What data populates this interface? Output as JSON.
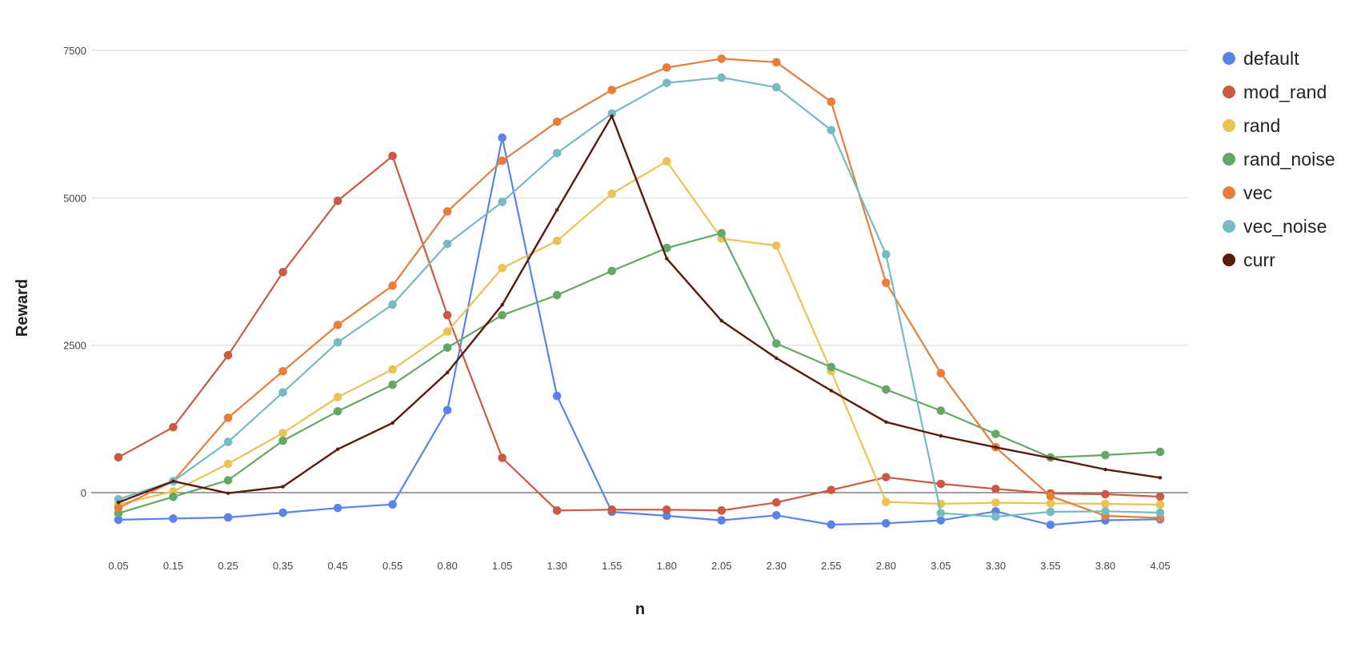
{
  "chart_data": {
    "type": "line",
    "title": "",
    "xlabel": "n",
    "ylabel": "Reward",
    "ylim": [
      -750,
      7800
    ],
    "yticks": [
      0,
      2500,
      5000,
      7500
    ],
    "grid": true,
    "legend_position": "right",
    "categories": [
      "0.05",
      "0.15",
      "0.25",
      "0.35",
      "0.45",
      "0.55",
      "0.80",
      "1.05",
      "1.30",
      "1.55",
      "1.80",
      "2.05",
      "2.30",
      "2.55",
      "2.80",
      "3.05",
      "3.30",
      "3.55",
      "3.80",
      "4.05"
    ],
    "series": [
      {
        "name": "default",
        "color": "#5B84E8",
        "marker": "circle",
        "values": [
          -460,
          -440,
          -420,
          -340,
          -260,
          -200,
          1400,
          6020,
          1640,
          -325,
          -393,
          -470,
          -384,
          -542,
          -520,
          -470,
          -317,
          -546,
          -470,
          -452
        ]
      },
      {
        "name": "mod_rand",
        "color": "#CC5944",
        "marker": "circle",
        "values": [
          600,
          1110,
          2330,
          3740,
          4950,
          5710,
          3010,
          590,
          -303,
          -289,
          -289,
          -303,
          -167,
          45,
          262,
          149,
          64,
          -14,
          -27,
          -68
        ]
      },
      {
        "name": "rand",
        "color": "#EDC254",
        "marker": "circle",
        "values": [
          -200,
          20,
          490,
          1010,
          1620,
          2090,
          2730,
          3810,
          4270,
          5070,
          5620,
          4310,
          4190,
          2060,
          -158,
          -190,
          -171,
          -181,
          -190,
          -203
        ]
      },
      {
        "name": "rand_noise",
        "color": "#65A766",
        "marker": "circle",
        "values": [
          -350,
          -70,
          210,
          880,
          1380,
          1830,
          2460,
          3010,
          3350,
          3760,
          4150,
          4400,
          2530,
          2130,
          1750,
          1390,
          995,
          597,
          637,
          692
        ]
      },
      {
        "name": "vec",
        "color": "#E67E3C",
        "marker": "circle",
        "values": [
          -258,
          194,
          1270,
          2060,
          2845,
          3510,
          4770,
          5630,
          6290,
          6830,
          7210,
          7360,
          7300,
          6630,
          3560,
          2025,
          769,
          -58,
          -393,
          -429
        ]
      },
      {
        "name": "vec_noise",
        "color": "#77BAC4",
        "marker": "circle",
        "values": [
          -113,
          194,
          860,
          1700,
          2550,
          3190,
          4220,
          4930,
          5760,
          6430,
          6950,
          7040,
          6875,
          6150,
          4040,
          -348,
          -407,
          -325,
          -316,
          -339
        ]
      },
      {
        "name": "curr",
        "color": "#5A1B0E",
        "marker": "point",
        "values": [
          -167,
          194,
          -10,
          101,
          736,
          1182,
          2038,
          3187,
          4796,
          6387,
          3970,
          2915,
          2282,
          1731,
          1198,
          963,
          769,
          587,
          393,
          254
        ]
      }
    ]
  },
  "axes": {
    "y_tick_labels": [
      "0",
      "2500",
      "5000",
      "7500"
    ],
    "x_title": "n",
    "y_title": "Reward"
  }
}
